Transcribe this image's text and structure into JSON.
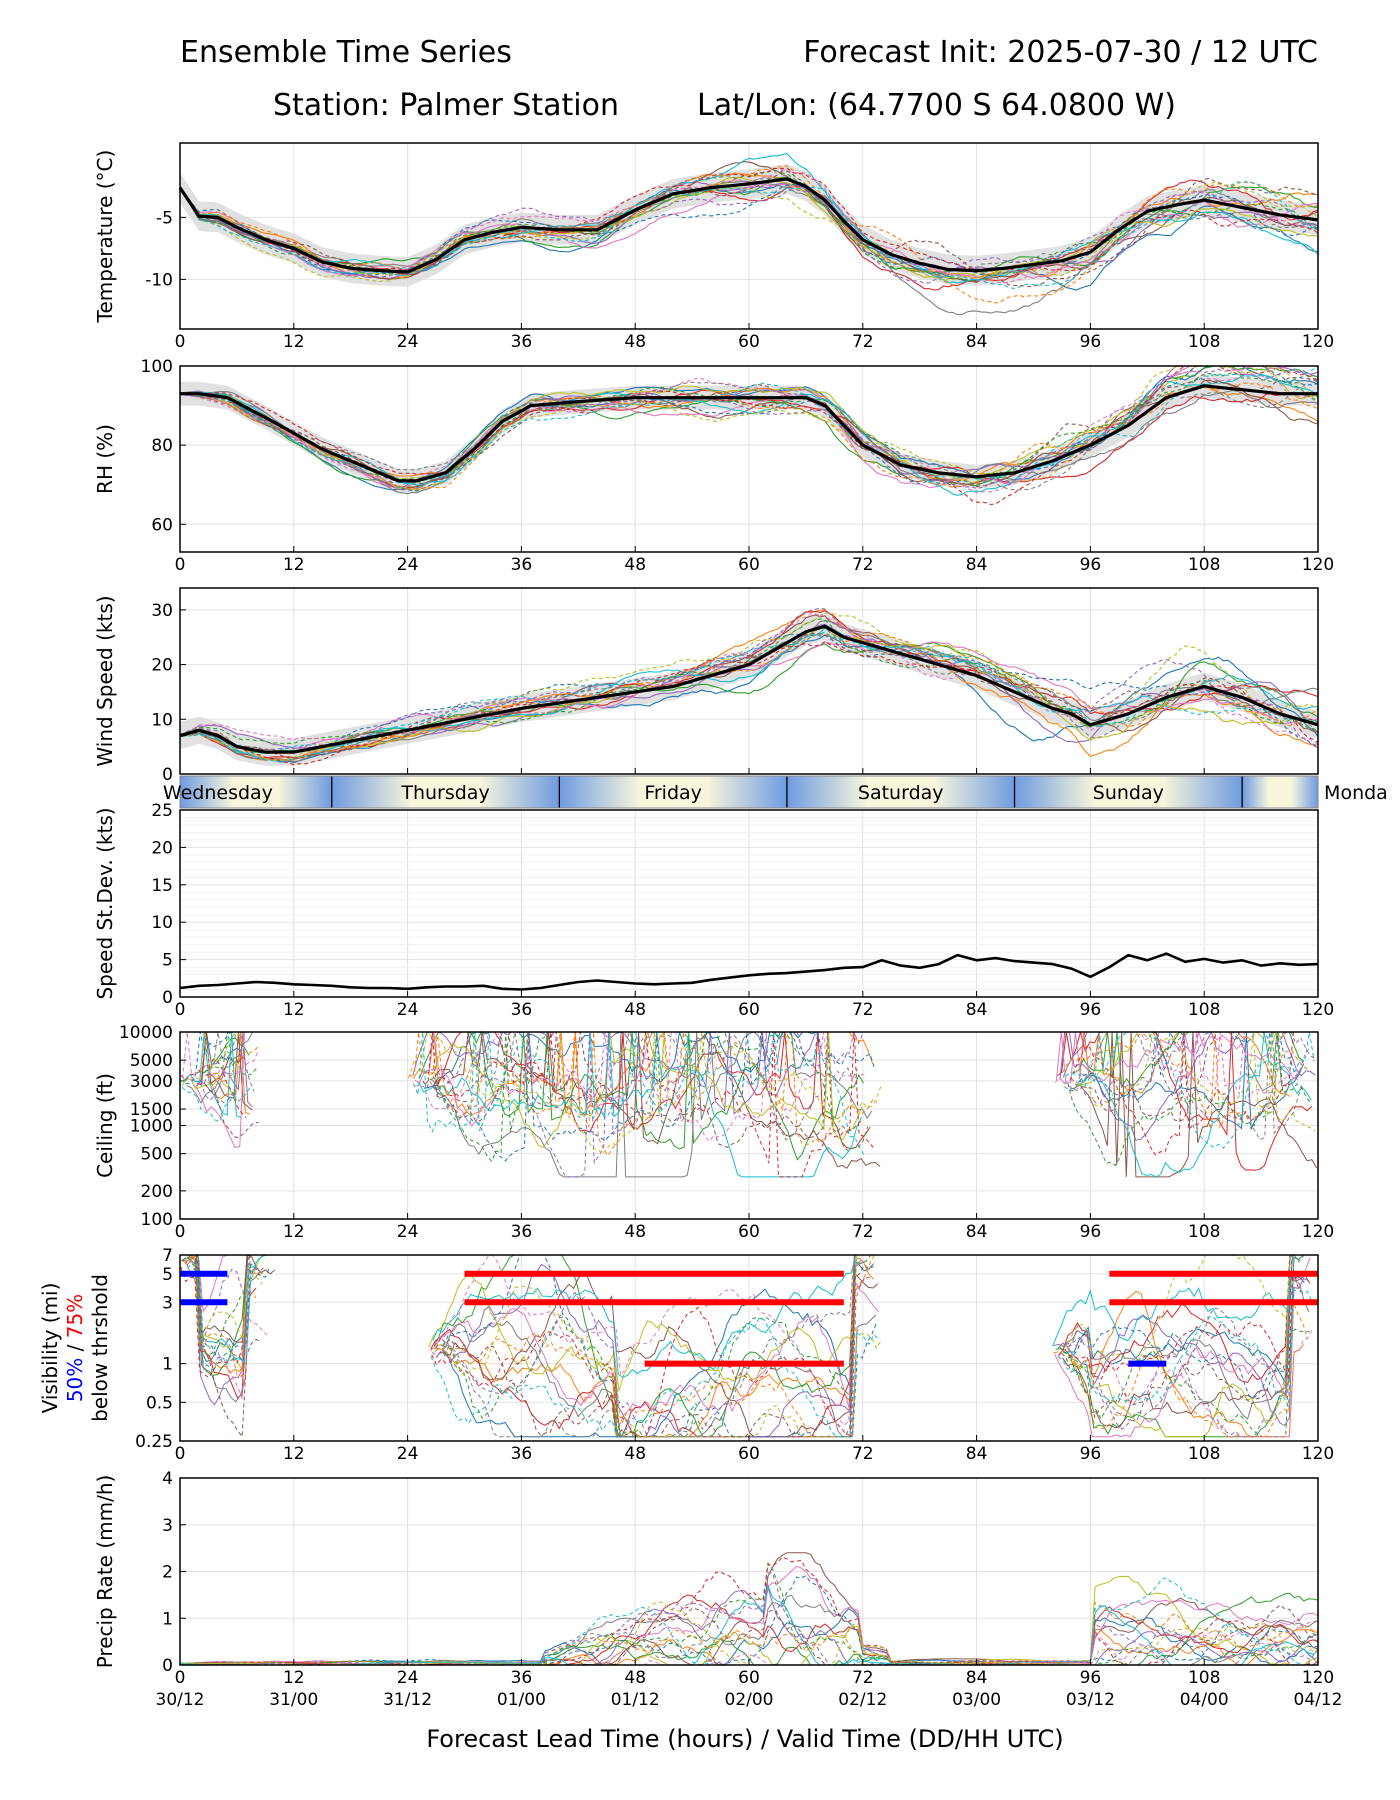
{
  "header": {
    "title_left": "Ensemble Time Series",
    "title_right": "Forecast Init: 2025-07-30 / 12 UTC",
    "station": "Station: Palmer Station",
    "latlon": "Lat/Lon: (64.7700 S 64.0800 W)"
  },
  "xaxis": {
    "lead_ticks": [
      "0",
      "12",
      "24",
      "36",
      "48",
      "60",
      "72",
      "84",
      "96",
      "108",
      "120"
    ],
    "valid_ticks": [
      "30/12",
      "31/00",
      "31/12",
      "01/00",
      "01/12",
      "02/00",
      "02/12",
      "03/00",
      "03/12",
      "04/00",
      "04/12"
    ],
    "label": "Forecast Lead Time (hours) / Valid Time (DD/HH UTC)"
  },
  "day_strip": {
    "days": [
      "Wednesday",
      "Thursday",
      "Friday",
      "Saturday",
      "Sunday",
      "Monda"
    ],
    "boundaries_hours": [
      16,
      40,
      64,
      88,
      112
    ]
  },
  "colors": {
    "mean": "#000000",
    "spread": "#d9d9d9",
    "members": [
      "#1f77b4",
      "#ff7f0e",
      "#2ca02c",
      "#d62728",
      "#9467bd",
      "#8c564b",
      "#e377c2",
      "#7f7f7f",
      "#bcbd22",
      "#17becf"
    ],
    "vis50": "#0000ff",
    "vis75": "#ff0000",
    "day_a": "#6f9be0",
    "day_b": "#f7f5dc"
  },
  "chart_data": [
    {
      "type": "line",
      "ylabel": "Temperature (°C)",
      "yticks": [
        "-5",
        "-10"
      ],
      "ylim": [
        -14,
        1
      ],
      "mean": {
        "x": [
          0,
          2,
          4,
          6,
          9,
          12,
          15,
          18,
          21,
          24,
          27,
          30,
          33,
          36,
          40,
          44,
          48,
          52,
          56,
          60,
          64,
          66,
          68,
          70,
          72,
          75,
          78,
          81,
          84,
          87,
          90,
          93,
          96,
          99,
          102,
          105,
          108,
          112,
          116,
          120
        ],
        "y": [
          -2.6,
          -4.9,
          -5.0,
          -5.8,
          -6.8,
          -7.5,
          -8.6,
          -9.1,
          -9.3,
          -9.4,
          -8.4,
          -6.8,
          -6.2,
          -5.8,
          -6.0,
          -6.0,
          -4.4,
          -3.1,
          -2.6,
          -2.3,
          -1.9,
          -2.5,
          -3.6,
          -5.3,
          -6.8,
          -8.0,
          -8.7,
          -9.2,
          -9.3,
          -9.1,
          -8.8,
          -8.5,
          -7.8,
          -6.0,
          -4.5,
          -4.0,
          -3.6,
          -4.2,
          -4.8,
          -5.2
        ]
      },
      "spread_width": 1.2,
      "member_noise": 1.6
    },
    {
      "type": "line",
      "ylabel": "RH (%)",
      "yticks": [
        "100",
        "80",
        "60"
      ],
      "ylim": [
        53,
        100
      ],
      "mean": {
        "x": [
          0,
          2,
          5,
          9,
          12,
          15,
          18,
          21,
          23,
          25,
          28,
          31,
          34,
          37,
          42,
          48,
          54,
          60,
          64,
          66,
          68,
          70,
          72,
          76,
          80,
          84,
          88,
          92,
          96,
          100,
          104,
          108,
          112,
          116,
          120
        ],
        "y": [
          93,
          93,
          92,
          87,
          83,
          79,
          76,
          73,
          71,
          71,
          73,
          79,
          86,
          90,
          91,
          92,
          92,
          92,
          92,
          92,
          90,
          85,
          80,
          75,
          73,
          72,
          73,
          76,
          80,
          85,
          92,
          95,
          94,
          93,
          93
        ]
      },
      "spread_width": 3,
      "member_noise": 5
    },
    {
      "type": "line",
      "ylabel": "Wind Speed (kts)",
      "yticks": [
        "30",
        "20",
        "10",
        "0"
      ],
      "ylim": [
        0,
        34
      ],
      "mean": {
        "x": [
          0,
          2,
          4,
          6,
          9,
          12,
          15,
          18,
          21,
          24,
          27,
          30,
          33,
          36,
          40,
          44,
          48,
          52,
          56,
          60,
          63,
          66,
          68,
          70,
          72,
          76,
          80,
          84,
          88,
          92,
          94,
          96,
          98,
          100,
          104,
          108,
          112,
          116,
          120
        ],
        "y": [
          7,
          8,
          7,
          5,
          4,
          4,
          5,
          6,
          7,
          8,
          9,
          10,
          11,
          12,
          13,
          14,
          15,
          16,
          18,
          20,
          23,
          26,
          27,
          25,
          24,
          22,
          20,
          18,
          15,
          12,
          11,
          9,
          10,
          11,
          14,
          16,
          14,
          11,
          9
        ]
      },
      "spread_width": 2.5,
      "member_noise": 4
    },
    {
      "type": "line",
      "ylabel": "Speed St.Dev. (kts)",
      "yticks": [
        "25",
        "20",
        "15",
        "10",
        "5",
        "0"
      ],
      "ylim": [
        0,
        25
      ],
      "series": {
        "x": [
          0,
          2,
          4,
          6,
          8,
          10,
          12,
          14,
          16,
          18,
          20,
          22,
          24,
          26,
          28,
          30,
          32,
          34,
          36,
          38,
          40,
          42,
          44,
          46,
          48,
          50,
          52,
          54,
          56,
          58,
          60,
          62,
          64,
          66,
          68,
          70,
          72,
          74,
          76,
          78,
          80,
          82,
          84,
          86,
          88,
          90,
          92,
          94,
          96,
          98,
          100,
          102,
          104,
          106,
          108,
          110,
          112,
          114,
          116,
          118,
          120
        ],
        "y": [
          1.2,
          1.5,
          1.6,
          1.8,
          2.0,
          1.9,
          1.7,
          1.6,
          1.5,
          1.3,
          1.2,
          1.2,
          1.1,
          1.3,
          1.4,
          1.4,
          1.5,
          1.1,
          1.0,
          1.2,
          1.6,
          2.0,
          2.2,
          2.0,
          1.8,
          1.7,
          1.8,
          1.9,
          2.3,
          2.6,
          2.9,
          3.1,
          3.2,
          3.4,
          3.6,
          3.9,
          4.0,
          4.9,
          4.2,
          3.9,
          4.4,
          5.6,
          4.9,
          5.2,
          4.8,
          4.6,
          4.4,
          3.8,
          2.7,
          4.0,
          5.6,
          4.9,
          5.8,
          4.7,
          5.1,
          4.6,
          4.9,
          4.2,
          4.5,
          4.3,
          4.4
        ]
      }
    },
    {
      "type": "line",
      "ylabel": "Ceiling (ft)",
      "scale": "log",
      "yticks": [
        "10000",
        "5000",
        "3000",
        "1500",
        "1000",
        "500",
        "200",
        "100"
      ],
      "tick_values": [
        10000,
        5000,
        3000,
        1500,
        1000,
        500,
        200,
        100
      ],
      "ylim": [
        100,
        10000
      ],
      "segments": [
        [
          0,
          9
        ],
        [
          24,
          74
        ],
        [
          92,
          120
        ]
      ],
      "typical_ft": 3000
    },
    {
      "type": "line",
      "ylabel": "Visibility (mi)",
      "ylabel_50": "50%",
      "ylabel_sep": " / ",
      "ylabel_75": "75%",
      "ylabel2": "below thrshold",
      "scale": "log",
      "yticks": [
        "7",
        "5",
        "3",
        "1",
        "0.5",
        "0.25"
      ],
      "tick_values": [
        7,
        5,
        3,
        1,
        0.5,
        0.25
      ],
      "ylim": [
        0.25,
        7
      ],
      "threshold_bars": [
        {
          "value": 5,
          "x0": 0,
          "x1": 5,
          "color": "blue"
        },
        {
          "value": 3,
          "x0": 0,
          "x1": 5,
          "color": "blue"
        },
        {
          "value": 5,
          "x0": 30,
          "x1": 70,
          "color": "red"
        },
        {
          "value": 3,
          "x0": 30,
          "x1": 70,
          "color": "red"
        },
        {
          "value": 1,
          "x0": 49,
          "x1": 70,
          "color": "red"
        },
        {
          "value": 5,
          "x0": 98,
          "x1": 120,
          "color": "red"
        },
        {
          "value": 3,
          "x0": 98,
          "x1": 120,
          "color": "red"
        },
        {
          "value": 1,
          "x0": 100,
          "x1": 104,
          "color": "blue"
        }
      ]
    },
    {
      "type": "line",
      "ylabel": "Precip Rate (mm/h)",
      "yticks": [
        "4",
        "3",
        "2",
        "1",
        "0"
      ],
      "ylim": [
        0,
        4
      ],
      "active_hours": [
        [
          38,
          75
        ],
        [
          96,
          120
        ]
      ],
      "peak_mm_h": 2.4
    }
  ]
}
